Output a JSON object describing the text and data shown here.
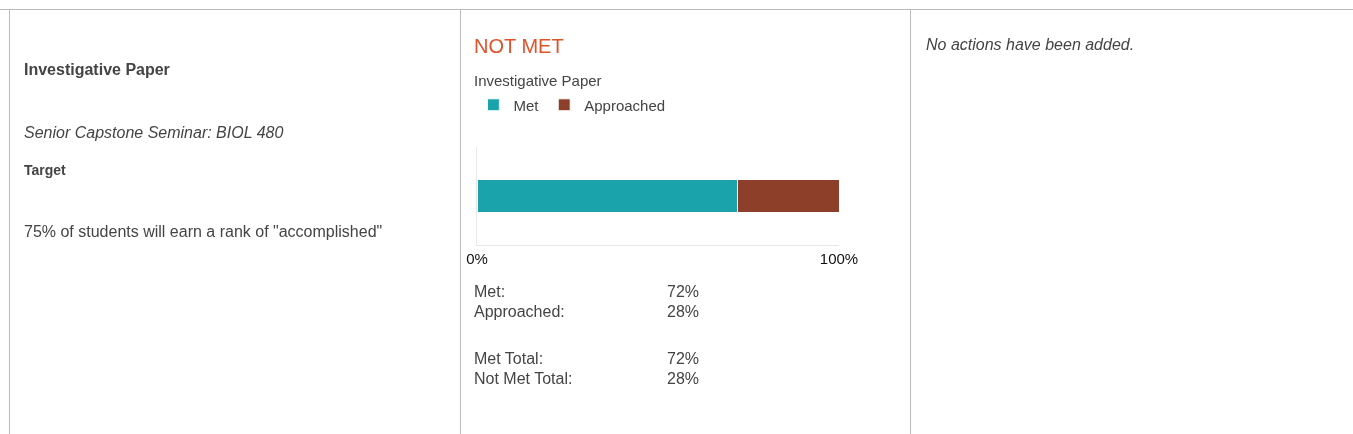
{
  "chart_data": {
    "type": "bar",
    "orientation": "horizontal",
    "stacked": true,
    "title": "NOT MET",
    "subtitle": "Investigative Paper",
    "categories": [
      null
    ],
    "series": [
      {
        "name": "Met",
        "color": "#1aa3ab",
        "values": [
          72
        ]
      },
      {
        "name": "Approached",
        "color": "#8e3f2a",
        "values": [
          28
        ]
      }
    ],
    "xlim": [
      0,
      100
    ],
    "xticks": [
      {
        "value": 0,
        "label": "0%"
      },
      {
        "value": 100,
        "label": "100%"
      }
    ],
    "legend": "top left",
    "annotations": [
      "Investigative Paper",
      "Senior Capstone Seminar: BIOL 480",
      "Target",
      "75% of students will earn a rank of \"accomplished\"",
      "Met:",
      "72%",
      "Approached:",
      "28%",
      "Met Total:",
      "72%",
      "Not Met Total:",
      "28%",
      "No actions have been added."
    ]
  }
}
